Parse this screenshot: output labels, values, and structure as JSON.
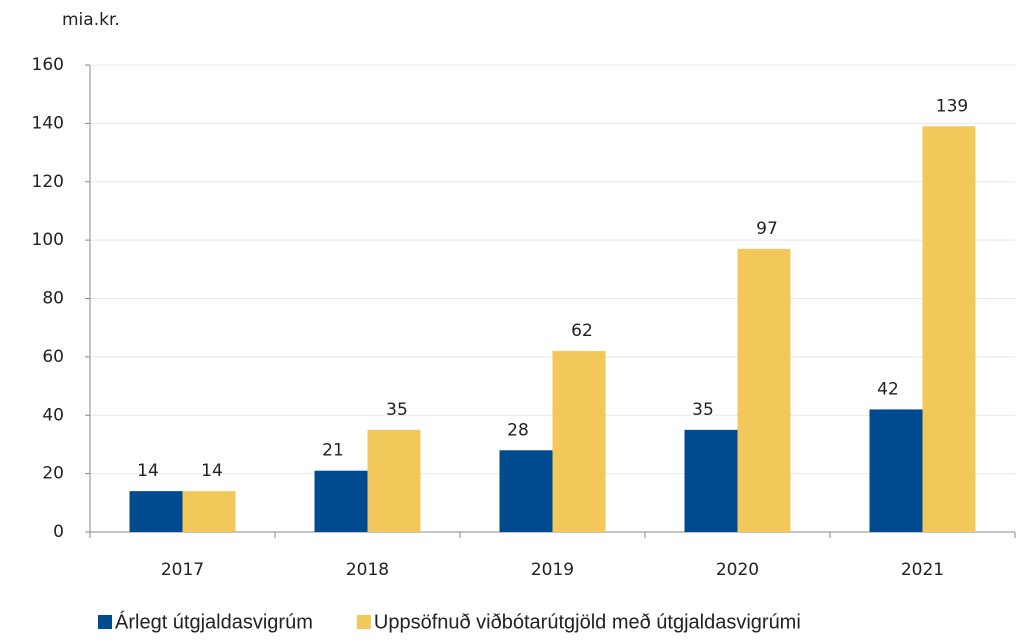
{
  "chart_data": {
    "type": "bar",
    "y_axis_label": "mia.kr.",
    "categories": [
      "2017",
      "2018",
      "2019",
      "2020",
      "2021"
    ],
    "series": [
      {
        "name": "Árlegt útgjaldasvigrúm",
        "color": "#004a8f",
        "values": [
          14,
          21,
          28,
          35,
          42
        ]
      },
      {
        "name": "Uppsöfnuð viðbótarútgjöld með útgjaldasvigrúmi",
        "color": "#f2c85b",
        "values": [
          14,
          35,
          62,
          97,
          139
        ]
      }
    ],
    "ylim": [
      0,
      160
    ],
    "yticks": [
      0,
      20,
      40,
      60,
      80,
      100,
      120,
      140,
      160
    ],
    "grid": true
  }
}
